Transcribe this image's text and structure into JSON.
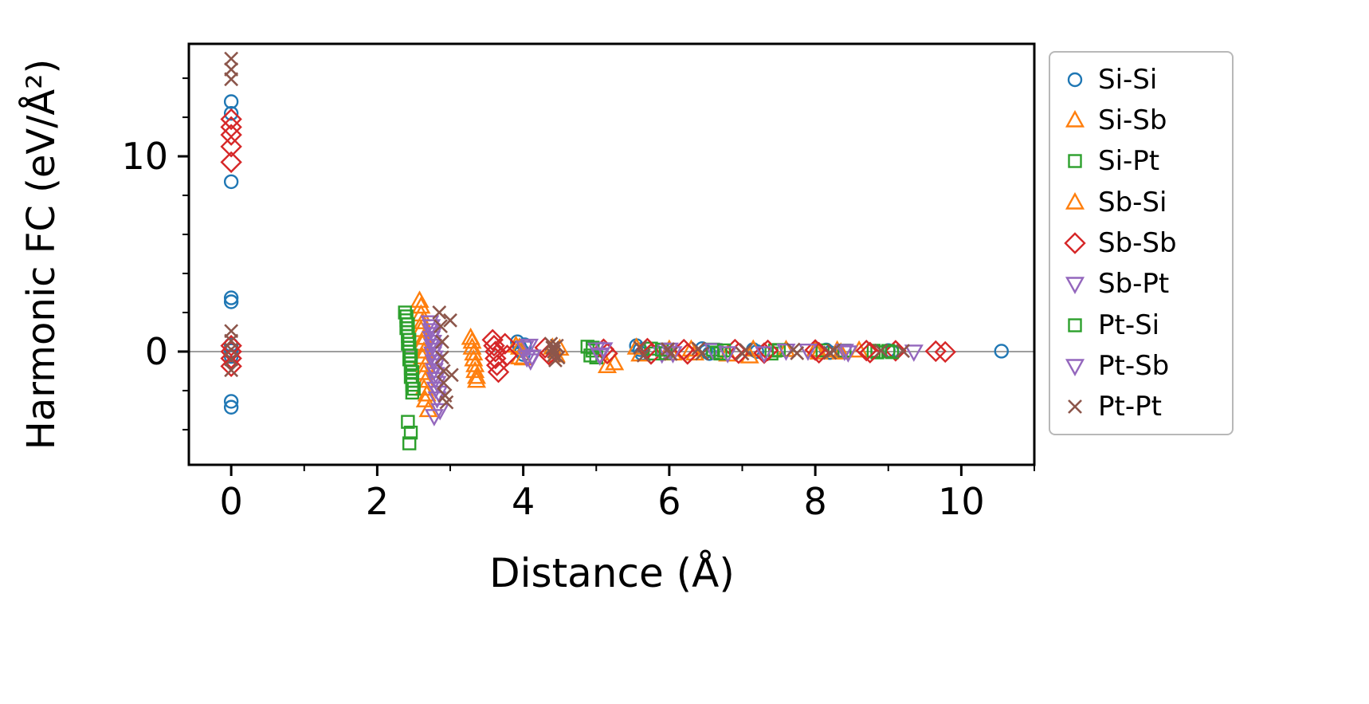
{
  "chart_data": {
    "type": "scatter",
    "title": "",
    "xlabel": "Distance (Å)",
    "ylabel": "Harmonic FC (eV/Å²)",
    "xlim": [
      -0.58,
      11.0
    ],
    "ylim": [
      -5.8,
      15.76
    ],
    "xticks": [
      0,
      2,
      4,
      6,
      8,
      10
    ],
    "xticks_minor": [
      1,
      3,
      5,
      7,
      9,
      11
    ],
    "yticks": [
      0,
      10
    ],
    "yticks_minor": [
      -4,
      -2,
      2,
      4,
      6,
      8,
      12,
      14
    ],
    "grid": false,
    "zero_line": 0,
    "zero_line_color": "#7f7f7f",
    "legend_position": "outside-right",
    "series": [
      {
        "name": "Si-Si",
        "marker": "circle",
        "color": "#1f77b4",
        "points": [
          [
            0,
            12.8
          ],
          [
            0,
            12.2
          ],
          [
            0,
            8.7
          ],
          [
            0,
            2.75
          ],
          [
            0,
            2.55
          ],
          [
            0,
            0.35
          ],
          [
            0,
            0.05
          ],
          [
            0,
            -0.25
          ],
          [
            0,
            -2.55
          ],
          [
            0,
            -2.85
          ],
          [
            3.92,
            0.5
          ],
          [
            3.95,
            0.25
          ],
          [
            3.98,
            0.05
          ],
          [
            4.0,
            -0.15
          ],
          [
            4.02,
            0.35
          ],
          [
            5.55,
            0.3
          ],
          [
            5.6,
            0.1
          ],
          [
            5.62,
            -0.1
          ],
          [
            6.45,
            0.15
          ],
          [
            6.5,
            0
          ],
          [
            6.55,
            -0.1
          ],
          [
            7.15,
            0.1
          ],
          [
            7.2,
            0
          ],
          [
            8.15,
            0.08
          ],
          [
            8.2,
            -0.05
          ],
          [
            9.0,
            0.05
          ],
          [
            9.05,
            0
          ],
          [
            10.55,
            0.02
          ]
        ]
      },
      {
        "name": "Si-Sb",
        "marker": "triangle-up",
        "color": "#ff7f0e",
        "points": [
          [
            2.58,
            2.6
          ],
          [
            2.6,
            1.9
          ],
          [
            2.6,
            1.1
          ],
          [
            2.62,
            0.4
          ],
          [
            2.62,
            -0.3
          ],
          [
            2.64,
            -1.1
          ],
          [
            2.64,
            -1.9
          ],
          [
            2.66,
            -2.5
          ],
          [
            3.28,
            0.7
          ],
          [
            3.3,
            0.2
          ],
          [
            3.32,
            -0.4
          ],
          [
            3.34,
            -1.0
          ],
          [
            3.36,
            -1.5
          ],
          [
            3.9,
            0.3
          ],
          [
            3.95,
            -0.3
          ],
          [
            4.4,
            0.2
          ],
          [
            4.45,
            -0.2
          ],
          [
            5.15,
            -0.75
          ],
          [
            5.55,
            0.2
          ],
          [
            5.6,
            -0.15
          ],
          [
            6.3,
            0.1
          ],
          [
            6.35,
            -0.1
          ],
          [
            7.1,
            -0.25
          ],
          [
            7.15,
            0.1
          ],
          [
            8.0,
            0.08
          ],
          [
            8.05,
            -0.05
          ],
          [
            8.6,
            0.05
          ]
        ]
      },
      {
        "name": "Si-Pt",
        "marker": "square",
        "color": "#2ca02c",
        "points": [
          [
            2.38,
            2.0
          ],
          [
            2.4,
            1.6
          ],
          [
            2.4,
            1.2
          ],
          [
            2.42,
            0.8
          ],
          [
            2.42,
            0.4
          ],
          [
            2.44,
            0.0
          ],
          [
            2.44,
            -0.4
          ],
          [
            2.46,
            -0.85
          ],
          [
            2.46,
            -1.3
          ],
          [
            2.48,
            -1.7
          ],
          [
            2.48,
            -2.1
          ],
          [
            2.42,
            -3.6
          ],
          [
            2.46,
            -4.15
          ],
          [
            4.88,
            0.25
          ],
          [
            4.92,
            -0.2
          ],
          [
            4.95,
            0.05
          ],
          [
            5.75,
            0.15
          ],
          [
            5.8,
            -0.1
          ],
          [
            6.6,
            0.1
          ],
          [
            6.65,
            -0.05
          ],
          [
            7.4,
            -0.1
          ],
          [
            7.45,
            0.05
          ],
          [
            8.1,
            0.06
          ],
          [
            8.8,
            0.04
          ],
          [
            8.85,
            -0.04
          ]
        ]
      },
      {
        "name": "Sb-Si",
        "marker": "triangle-up",
        "color": "#ff7f0e",
        "points": [
          [
            2.6,
            2.3
          ],
          [
            2.62,
            1.5
          ],
          [
            2.64,
            0.7
          ],
          [
            2.64,
            0.0
          ],
          [
            2.66,
            -0.7
          ],
          [
            2.66,
            -1.5
          ],
          [
            2.68,
            -2.2
          ],
          [
            2.7,
            -3.0
          ],
          [
            3.3,
            0.5
          ],
          [
            3.32,
            -0.1
          ],
          [
            3.34,
            -0.7
          ],
          [
            3.36,
            -1.3
          ],
          [
            3.95,
            0.2
          ],
          [
            4.0,
            -0.35
          ],
          [
            4.5,
            0.15
          ],
          [
            5.25,
            -0.6
          ],
          [
            6.0,
            0.1
          ],
          [
            6.05,
            -0.1
          ],
          [
            6.8,
            -0.15
          ],
          [
            7.6,
            0.08
          ],
          [
            8.3,
            0.05
          ],
          [
            8.35,
            -0.05
          ]
        ]
      },
      {
        "name": "Sb-Sb",
        "marker": "diamond",
        "color": "#d62728",
        "points": [
          [
            0,
            11.9
          ],
          [
            0,
            11.5
          ],
          [
            0,
            11.1
          ],
          [
            0,
            10.5
          ],
          [
            0,
            9.7
          ],
          [
            0,
            0.3
          ],
          [
            0,
            0
          ],
          [
            0,
            -0.35
          ],
          [
            0,
            -0.75
          ],
          [
            3.58,
            0.6
          ],
          [
            3.6,
            0.3
          ],
          [
            3.62,
            0
          ],
          [
            3.62,
            -0.35
          ],
          [
            3.64,
            -0.7
          ],
          [
            3.66,
            -1.05
          ],
          [
            3.75,
            0.4
          ],
          [
            3.78,
            -0.2
          ],
          [
            4.3,
            0.2
          ],
          [
            4.35,
            -0.15
          ],
          [
            5.1,
            0.12
          ],
          [
            5.15,
            -0.1
          ],
          [
            5.7,
            0.15
          ],
          [
            5.75,
            -0.12
          ],
          [
            6.2,
            0.1
          ],
          [
            6.25,
            -0.12
          ],
          [
            6.9,
            0.1
          ],
          [
            6.95,
            -0.08
          ],
          [
            7.3,
            -0.08
          ],
          [
            7.35,
            0.06
          ],
          [
            8.0,
            0.08
          ],
          [
            8.05,
            -0.06
          ],
          [
            8.7,
            0.05
          ],
          [
            8.75,
            -0.05
          ],
          [
            9.1,
            0.04
          ],
          [
            9.65,
            0.02
          ],
          [
            9.78,
            -0.02
          ]
        ]
      },
      {
        "name": "Sb-Pt",
        "marker": "triangle-down",
        "color": "#9467bd",
        "points": [
          [
            2.72,
            1.5
          ],
          [
            2.74,
            1.1
          ],
          [
            2.74,
            0.7
          ],
          [
            2.76,
            0.3
          ],
          [
            2.76,
            -0.1
          ],
          [
            2.78,
            -0.5
          ],
          [
            2.78,
            -0.95
          ],
          [
            2.8,
            -1.4
          ],
          [
            2.8,
            -1.9
          ],
          [
            2.82,
            -2.4
          ],
          [
            2.78,
            -3.3
          ],
          [
            4.02,
            0.2
          ],
          [
            4.05,
            -0.3
          ],
          [
            4.1,
            -0.45
          ],
          [
            5.0,
            0.15
          ],
          [
            5.05,
            -0.15
          ],
          [
            5.9,
            -0.1
          ],
          [
            5.95,
            0.08
          ],
          [
            6.6,
            0.08
          ],
          [
            7.3,
            -0.08
          ],
          [
            7.9,
            0.05
          ],
          [
            9.35,
            0.0
          ]
        ]
      },
      {
        "name": "Pt-Si",
        "marker": "square",
        "color": "#2ca02c",
        "points": [
          [
            2.4,
            1.8
          ],
          [
            2.42,
            1.4
          ],
          [
            2.42,
            1.0
          ],
          [
            2.44,
            0.6
          ],
          [
            2.44,
            0.2
          ],
          [
            2.46,
            -0.2
          ],
          [
            2.46,
            -0.6
          ],
          [
            2.48,
            -1.05
          ],
          [
            2.48,
            -1.5
          ],
          [
            2.5,
            -1.9
          ],
          [
            2.44,
            -4.7
          ],
          [
            4.95,
            0.2
          ],
          [
            5.0,
            -0.3
          ],
          [
            5.9,
            0.1
          ],
          [
            5.95,
            -0.08
          ],
          [
            6.7,
            -0.1
          ],
          [
            6.75,
            0.06
          ],
          [
            7.5,
            0.08
          ],
          [
            8.4,
            0.05
          ],
          [
            9.0,
            0.03
          ],
          [
            9.05,
            -0.03
          ]
        ]
      },
      {
        "name": "Pt-Sb",
        "marker": "triangle-down",
        "color": "#9467bd",
        "points": [
          [
            2.74,
            1.3
          ],
          [
            2.76,
            0.9
          ],
          [
            2.76,
            0.5
          ],
          [
            2.78,
            0.1
          ],
          [
            2.78,
            -0.3
          ],
          [
            2.8,
            -0.7
          ],
          [
            2.8,
            -1.15
          ],
          [
            2.82,
            -1.6
          ],
          [
            2.84,
            -2.1
          ],
          [
            2.86,
            -3.0
          ],
          [
            4.08,
            0.3
          ],
          [
            4.12,
            -0.25
          ],
          [
            5.05,
            -0.2
          ],
          [
            5.1,
            0.12
          ],
          [
            6.0,
            0.1
          ],
          [
            6.05,
            -0.08
          ],
          [
            6.8,
            -0.08
          ],
          [
            7.6,
            0.05
          ],
          [
            8.4,
            0.04
          ],
          [
            8.45,
            -0.04
          ]
        ]
      },
      {
        "name": "Pt-Pt",
        "marker": "x",
        "color": "#8c564b",
        "points": [
          [
            0,
            15.0
          ],
          [
            0,
            14.45
          ],
          [
            0,
            13.95
          ],
          [
            0,
            1.05
          ],
          [
            0,
            0.55
          ],
          [
            0,
            0.1
          ],
          [
            0,
            -0.4
          ],
          [
            0,
            -0.95
          ],
          [
            2.85,
            2.0
          ],
          [
            2.87,
            1.3
          ],
          [
            2.89,
            0.5
          ],
          [
            2.89,
            -0.3
          ],
          [
            2.91,
            -1.0
          ],
          [
            2.91,
            -1.6
          ],
          [
            2.93,
            -2.25
          ],
          [
            2.95,
            -2.6
          ],
          [
            3.0,
            1.6
          ],
          [
            3.02,
            -1.2
          ],
          [
            4.38,
            0.4
          ],
          [
            4.4,
            0.2
          ],
          [
            4.42,
            0
          ],
          [
            4.42,
            -0.2
          ],
          [
            4.44,
            -0.45
          ],
          [
            4.46,
            0.3
          ],
          [
            4.48,
            -0.3
          ],
          [
            5.6,
            0.2
          ],
          [
            5.65,
            -0.2
          ],
          [
            5.98,
            0.12
          ],
          [
            6.02,
            -0.12
          ],
          [
            6.4,
            0.15
          ],
          [
            6.45,
            -0.1
          ],
          [
            7.0,
            -0.1
          ],
          [
            7.05,
            0.08
          ],
          [
            7.7,
            0.1
          ],
          [
            7.75,
            -0.08
          ],
          [
            8.2,
            -0.06
          ],
          [
            8.25,
            0.05
          ],
          [
            8.9,
            0.05
          ],
          [
            9.2,
            0.03
          ]
        ]
      }
    ]
  }
}
